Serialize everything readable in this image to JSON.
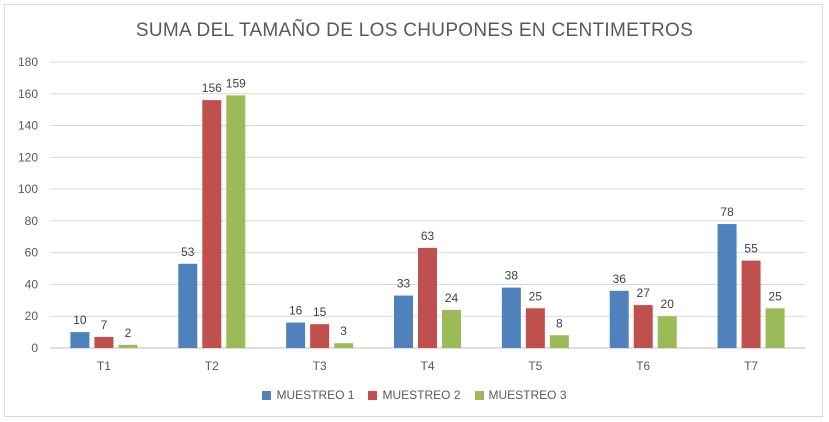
{
  "chart_data": {
    "type": "bar",
    "title": "SUMA DEL TAMAÑO DE LOS CHUPONES EN CENTIMETROS",
    "categories": [
      "T1",
      "T2",
      "T3",
      "T4",
      "T5",
      "T6",
      "T7"
    ],
    "series": [
      {
        "name": "MUESTREO 1",
        "color": "#4f81bd",
        "values": [
          10,
          53,
          16,
          33,
          38,
          36,
          78
        ]
      },
      {
        "name": "MUESTREO 2",
        "color": "#c0504d",
        "values": [
          7,
          156,
          15,
          63,
          25,
          27,
          55
        ]
      },
      {
        "name": "MUESTREO 3",
        "color": "#9bbb59",
        "values": [
          2,
          159,
          3,
          24,
          8,
          20,
          25
        ]
      }
    ],
    "ylim": [
      0,
      180
    ],
    "yticks": [
      0,
      20,
      40,
      60,
      80,
      100,
      120,
      140,
      160,
      180
    ],
    "grid": true,
    "legend": "bottom",
    "data_labels": true
  }
}
